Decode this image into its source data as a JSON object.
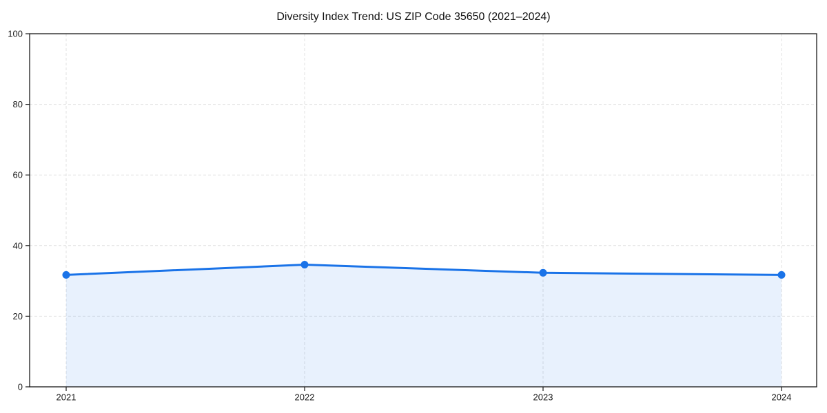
{
  "chart_data": {
    "type": "area",
    "title": "Diversity Index Trend: US ZIP Code 35650 (2021–2024)",
    "series_name": "Diversity Index",
    "categories": [
      "2021",
      "2022",
      "2023",
      "2024"
    ],
    "values": [
      31.7,
      34.6,
      32.3,
      31.7
    ],
    "xlabel": "",
    "ylabel": "",
    "ylim": [
      0,
      100
    ],
    "yticks": [
      0,
      20,
      40,
      60,
      80,
      100
    ],
    "grid": "dashed-both-axes",
    "legend": "none",
    "marker": "circle",
    "colors": {
      "line": "#1a73e8",
      "marker": "#1a73e8",
      "fill": "rgba(26,115,232,0.10)",
      "grid": "#e0e0e0",
      "spine": "#1a1a1a",
      "text": "#1a1a1a",
      "background": "#ffffff"
    }
  }
}
